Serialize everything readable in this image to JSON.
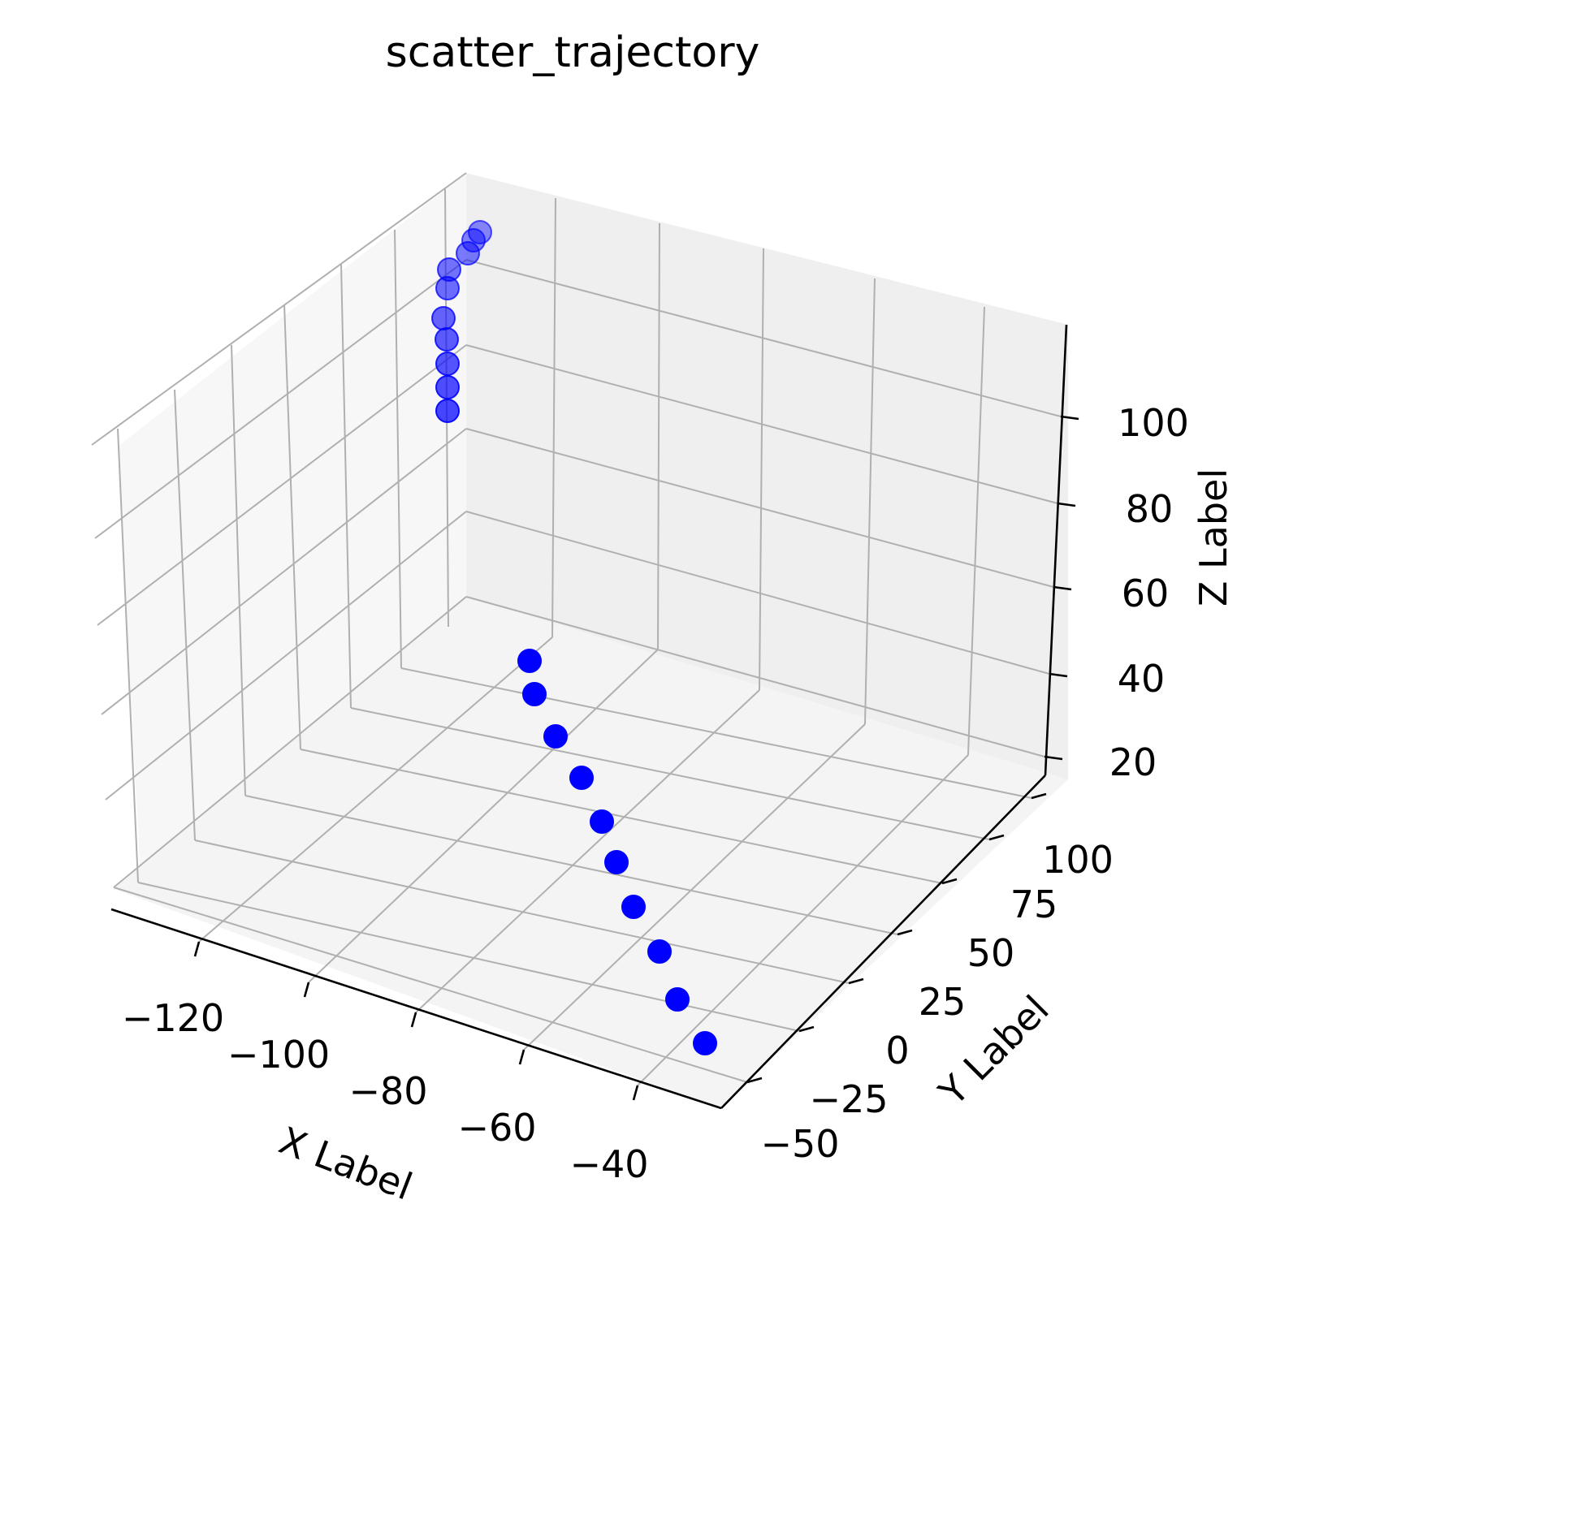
{
  "chart_data": {
    "type": "scatter",
    "projection": "3d",
    "title": "scatter_trajectory",
    "xlabel": "X Label",
    "ylabel": "Y Label",
    "zlabel": "Z Label",
    "xlim": [
      -130,
      -30
    ],
    "ylim": [
      -50,
      125
    ],
    "zlim": [
      15,
      120
    ],
    "xticks": [
      -120,
      -100,
      -80,
      -60,
      -40
    ],
    "yticks": [
      -50,
      -25,
      0,
      25,
      50,
      75,
      100
    ],
    "zticks": [
      20,
      40,
      60,
      80,
      100
    ],
    "grid": true,
    "marker_color": "#0000ff",
    "points_screen_estimate": [
      [
        591,
        286
      ],
      [
        583,
        296
      ],
      [
        576,
        312
      ],
      [
        553,
        332
      ],
      [
        551,
        355
      ],
      [
        546,
        392
      ],
      [
        550,
        418
      ],
      [
        551,
        448
      ],
      [
        551,
        477
      ],
      [
        551,
        506
      ],
      [
        652,
        814
      ],
      [
        658,
        855
      ],
      [
        684,
        907
      ],
      [
        716,
        958
      ],
      [
        741,
        1012
      ],
      [
        759,
        1062
      ],
      [
        780,
        1117
      ],
      [
        812,
        1172
      ],
      [
        834,
        1231
      ],
      [
        868,
        1285
      ]
    ]
  }
}
